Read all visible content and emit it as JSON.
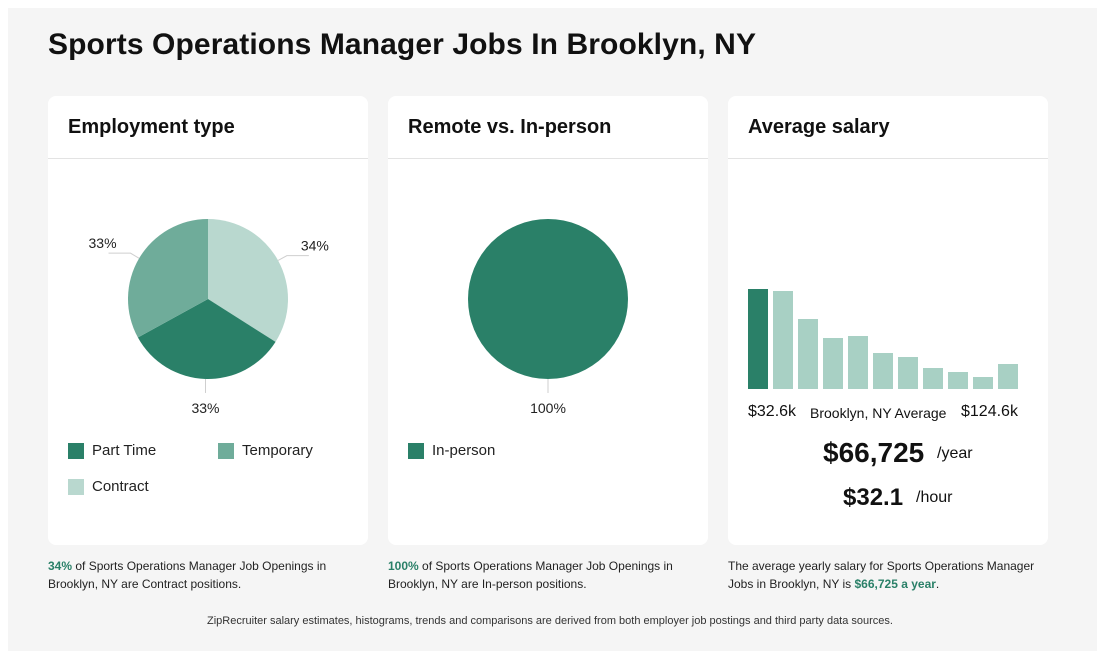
{
  "title": "Sports Operations Manager Jobs In Brooklyn, NY",
  "colors": {
    "dark": "#2a8068",
    "mid": "#6fac9a",
    "light": "#b9d8cf",
    "bar_light": "#a8d0c4"
  },
  "chart_data": [
    {
      "type": "pie",
      "title": "Employment type",
      "slices": [
        {
          "name": "Contract",
          "value": 34,
          "label": "34%",
          "color": "#b9d8cf"
        },
        {
          "name": "Part Time",
          "value": 33,
          "label": "33%",
          "color": "#2a8068"
        },
        {
          "name": "Temporary",
          "value": 33,
          "label": "33%",
          "color": "#6fac9a"
        }
      ],
      "legend": [
        {
          "name": "Part Time",
          "color": "#2a8068"
        },
        {
          "name": "Temporary",
          "color": "#6fac9a"
        },
        {
          "name": "Contract",
          "color": "#b9d8cf"
        }
      ]
    },
    {
      "type": "pie",
      "title": "Remote vs. In-person",
      "slices": [
        {
          "name": "In-person",
          "value": 100,
          "label": "100%",
          "color": "#2a8068"
        }
      ],
      "legend": [
        {
          "name": "In-person",
          "color": "#2a8068"
        }
      ]
    },
    {
      "type": "bar",
      "title": "Average salary",
      "values": [
        100,
        98,
        70,
        51,
        53,
        36,
        32,
        21,
        17,
        12,
        25
      ],
      "highlight_index": 0,
      "min_label": "$32.6k",
      "center_label": "Brooklyn, NY Average",
      "max_label": "$124.6k"
    }
  ],
  "salary": {
    "yearly": "$66,725",
    "yearly_unit": "/year",
    "hourly": "$32.1",
    "hourly_unit": "/hour"
  },
  "captions": {
    "employment": {
      "highlight": "34%",
      "text": " of Sports Operations Manager Job Openings in Brooklyn, NY are Contract positions."
    },
    "remote": {
      "highlight": "100%",
      "text": " of Sports Operations Manager Job Openings in Brooklyn, NY are In-person positions."
    },
    "salary": {
      "text": "The average yearly salary for Sports Operations Manager Jobs in Brooklyn, NY is ",
      "highlight": "$66,725 a year",
      "end": "."
    }
  },
  "footer": "ZipRecruiter salary estimates, histograms, trends and comparisons are derived from both employer job postings and third party data sources."
}
